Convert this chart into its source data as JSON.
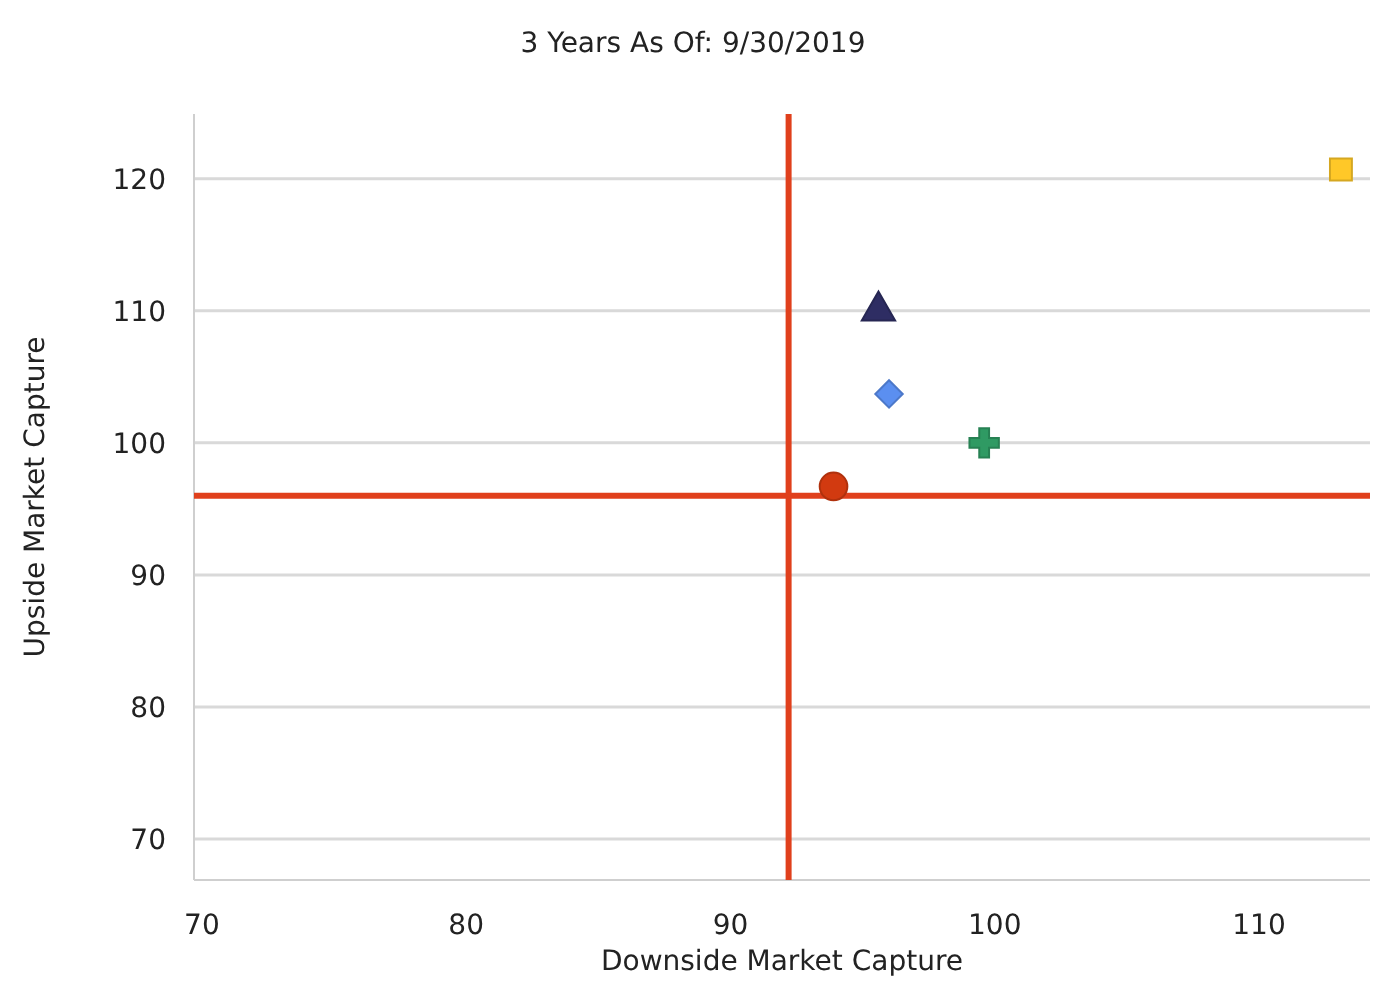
{
  "chart_data": {
    "type": "scatter",
    "title": "3 Years As Of: 9/30/2019",
    "xlabel": "Downside Market Capture",
    "ylabel": "Upside Market Capture",
    "xlim": [
      69.7,
      114.2
    ],
    "ylim": [
      66.9,
      124.9
    ],
    "xticks": [
      70,
      80,
      90,
      100,
      110
    ],
    "yticks": [
      70,
      80,
      90,
      100,
      110,
      120
    ],
    "grid": "y",
    "series": [
      {
        "color": "#ffc828",
        "marker": "square",
        "x": [
          113.1
        ],
        "values": [
          120.7
        ]
      },
      {
        "color": "#2e2d63",
        "marker": "triangle",
        "x": [
          95.6
        ],
        "values": [
          110.0
        ]
      },
      {
        "color": "#5b8ff0",
        "marker": "diamond",
        "x": [
          96.0
        ],
        "values": [
          103.7
        ]
      },
      {
        "color": "#2f9a63",
        "marker": "cross",
        "x": [
          99.6
        ],
        "values": [
          100.0
        ]
      },
      {
        "color": "#d23a10",
        "marker": "circle",
        "x": [
          93.9
        ],
        "values": [
          96.7
        ]
      }
    ],
    "ref_lines": [
      {
        "axis": "x",
        "value": 92.2,
        "color": "#e0401c"
      },
      {
        "axis": "y",
        "value": 96.0,
        "color": "#e0401c"
      }
    ]
  }
}
